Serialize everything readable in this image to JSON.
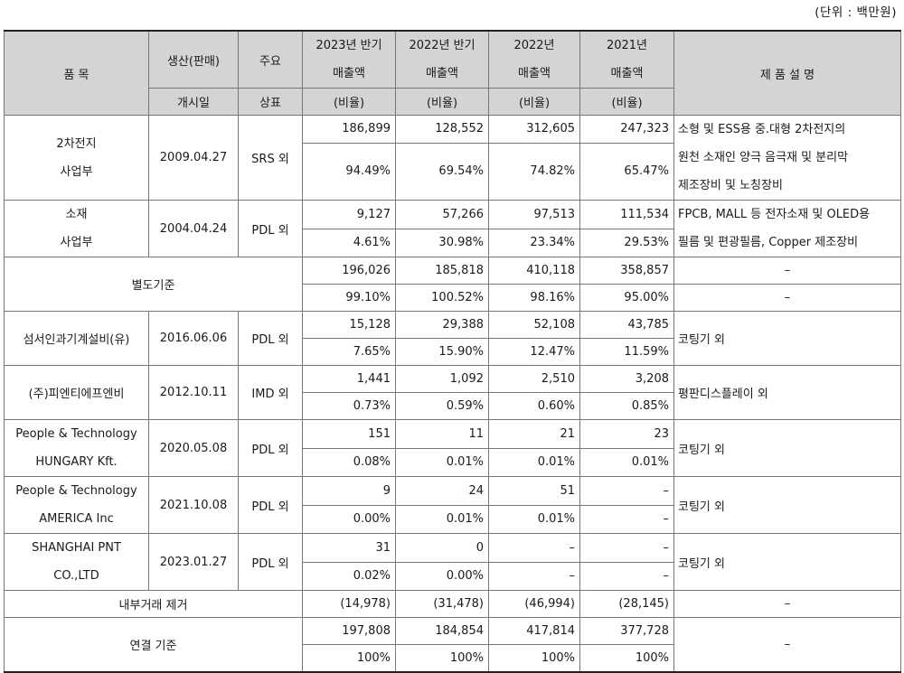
{
  "unit_note": "(단위 : 백만원)",
  "header": {
    "item": "품 목",
    "prod_top": "생산(판매)",
    "prod_bottom": "개시일",
    "brand_top": "주요",
    "brand_bottom": "상표",
    "periods": [
      {
        "line1": "2023년 반기",
        "line2": "매출액",
        "ratio": "(비율)"
      },
      {
        "line1": "2022년 반기",
        "line2": "매출액",
        "ratio": "(비율)"
      },
      {
        "line1": "2022년",
        "line2": "매출액",
        "ratio": "(비율)"
      },
      {
        "line1": "2021년",
        "line2": "매출액",
        "ratio": "(비율)"
      }
    ],
    "desc": "제 품 설 명"
  },
  "rows": {
    "battery": {
      "name": [
        "2차전지",
        "사업부"
      ],
      "date": "2009.04.27",
      "brand": "SRS 외",
      "amounts": [
        "186,899",
        "128,552",
        "312,605",
        "247,323"
      ],
      "ratios": [
        "94.49%",
        "69.54%",
        "74.82%",
        "65.47%"
      ],
      "desc": [
        "소형 및 ESS용 중.대형 2차전지의",
        "원천 소재인 양극 음극재 및 분리막",
        "제조장비 및 노칭장비"
      ]
    },
    "material": {
      "name": [
        "소재",
        "사업부"
      ],
      "date": "2004.04.24",
      "brand": "PDL 외",
      "amounts": [
        "9,127",
        "57,266",
        "97,513",
        "111,534"
      ],
      "ratios": [
        "4.61%",
        "30.98%",
        "23.34%",
        "29.53%"
      ],
      "desc": [
        "FPCB, MALL 등 전자소재 및 OLED용",
        "필름 및 편광필름, Copper 제조장비"
      ]
    },
    "separate": {
      "name": "별도기준",
      "amounts": [
        "196,026",
        "185,818",
        "410,118",
        "358,857"
      ],
      "ratios": [
        "99.10%",
        "100.52%",
        "98.16%",
        "95.00%"
      ],
      "desc": [
        "–",
        "–"
      ]
    },
    "weihai": {
      "name": "섬서인과기계설비(유)",
      "date": "2016.06.06",
      "brand": "PDL 외",
      "amounts": [
        "15,128",
        "29,388",
        "52,108",
        "43,785"
      ],
      "ratios": [
        "7.65%",
        "15.90%",
        "12.47%",
        "11.59%"
      ],
      "desc": "코팅기 외"
    },
    "pnpnb": {
      "name": "(주)피엔티에프엔비",
      "date": "2012.10.11",
      "brand": "IMD 외",
      "amounts": [
        "1,441",
        "1,092",
        "2,510",
        "3,208"
      ],
      "ratios": [
        "0.73%",
        "0.59%",
        "0.60%",
        "0.85%"
      ],
      "desc": "평판디스플레이 외"
    },
    "hungary": {
      "name": [
        "People & Technology",
        "HUNGARY Kft."
      ],
      "date": "2020.05.08",
      "brand": "PDL 외",
      "amounts": [
        "151",
        "11",
        "21",
        "23"
      ],
      "ratios": [
        "0.08%",
        "0.01%",
        "0.01%",
        "0.01%"
      ],
      "desc": "코팅기 외"
    },
    "america": {
      "name": [
        "People & Technology",
        "AMERICA Inc"
      ],
      "date": "2021.10.08",
      "brand": "PDL 외",
      "amounts": [
        "9",
        "24",
        "51",
        "–"
      ],
      "ratios": [
        "0.00%",
        "0.01%",
        "0.01%",
        "–"
      ],
      "desc": "코팅기 외"
    },
    "shanghai": {
      "name": [
        "SHANGHAI PNT",
        "CO.,LTD"
      ],
      "date": "2023.01.27",
      "brand": "PDL 외",
      "amounts": [
        "31",
        "0",
        "–",
        "–"
      ],
      "ratios": [
        "0.02%",
        "0.00%",
        "–",
        "–"
      ],
      "desc": "코팅기 외"
    },
    "internal": {
      "name": "내부거래 제거",
      "amounts": [
        "(14,978)",
        "(31,478)",
        "(46,994)",
        "(28,145)"
      ],
      "desc": "–"
    },
    "consolidated": {
      "name": "연결 기준",
      "amounts": [
        "197,808",
        "184,854",
        "417,814",
        "377,728"
      ],
      "ratios": [
        "100%",
        "100%",
        "100%",
        "100%"
      ],
      "desc": "–"
    }
  }
}
